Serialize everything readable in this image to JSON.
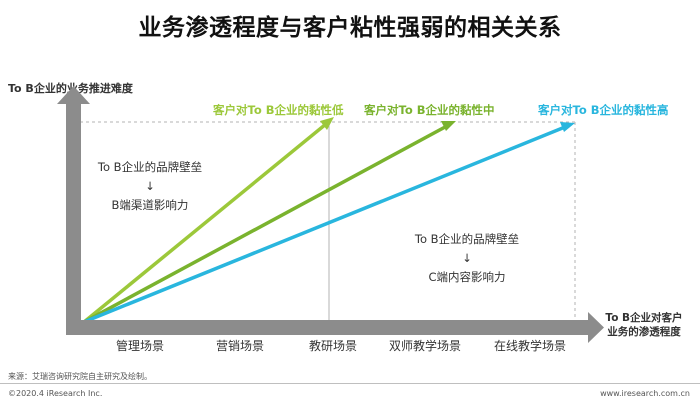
{
  "title": "业务渗透程度与客户粘性强弱的相关关系",
  "y_axis_title": "To B企业的业务推进难度",
  "x_axis_title_line1": "To B企业对客户",
  "x_axis_title_line2": "业务的渗透程度",
  "lines": [
    {
      "label": "客户对To B企业的黏性低",
      "color": "#9cc83a"
    },
    {
      "label": "客户对To B企业的黏性中",
      "color": "#7ab32e"
    },
    {
      "label": "客户对To B企业的黏性高",
      "color": "#29b6de"
    }
  ],
  "note_left": {
    "line1": "To B企业的品牌壁垒",
    "arrow": "↓",
    "line2": "B端渠道影响力"
  },
  "note_right": {
    "line1": "To B企业的品牌壁垒",
    "arrow": "↓",
    "line2": "C端内容影响力"
  },
  "scenes": [
    "管理场景",
    "营销场景",
    "教研场景",
    "双师教学场景",
    "在线教学场景"
  ],
  "source": "来源：艾瑞咨询研究院自主研究及绘制。",
  "copyright": "©2020.4 iResearch Inc.",
  "website": "www.iresearch.com.cn",
  "colors": {
    "axis": "#8c8c8c",
    "dashed": "#b3b3b3"
  }
}
